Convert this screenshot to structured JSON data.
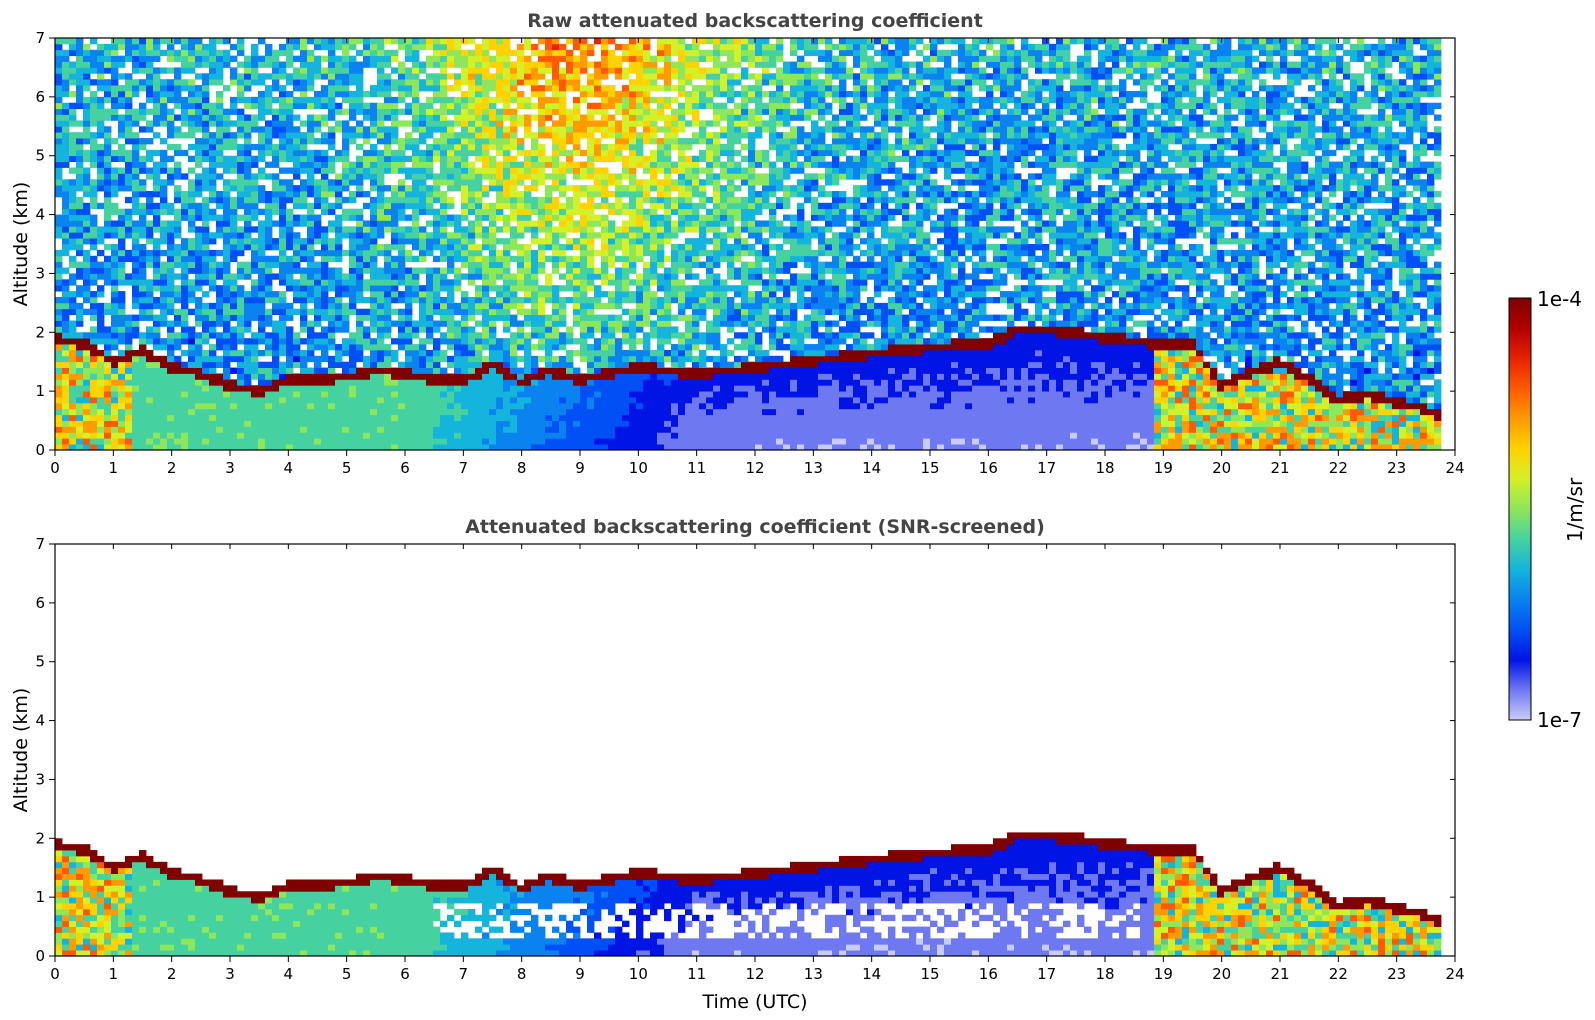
{
  "chart_data": [
    {
      "type": "heatmap",
      "title": "Raw attenuated backscattering coefficient",
      "xlabel": "",
      "ylabel": "Altitude (km)",
      "xlim": [
        0,
        24
      ],
      "ylim": [
        0,
        7
      ],
      "xticks": [
        "0",
        "1",
        "2",
        "3",
        "4",
        "5",
        "6",
        "7",
        "8",
        "9",
        "10",
        "11",
        "12",
        "13",
        "14",
        "15",
        "16",
        "17",
        "18",
        "19",
        "20",
        "21",
        "22",
        "23",
        "24"
      ],
      "yticks": [
        "0",
        "1",
        "2",
        "3",
        "4",
        "5",
        "6",
        "7"
      ],
      "boundary_layer_top_km": {
        "x": [
          0,
          0.5,
          1,
          1.5,
          2,
          2.5,
          3,
          3.5,
          4,
          4.5,
          5,
          5.5,
          6,
          6.5,
          7,
          7.5,
          8,
          8.5,
          9,
          9.5,
          10,
          10.5,
          11,
          11.5,
          12,
          15,
          16,
          16.5,
          17,
          17.5,
          18,
          18.5,
          19,
          19.5,
          20,
          21,
          21.5,
          22,
          22.5,
          23,
          23.5,
          23.7
        ],
        "y": [
          1.9,
          1.8,
          1.5,
          1.7,
          1.4,
          1.3,
          1.1,
          1.0,
          1.2,
          1.2,
          1.25,
          1.35,
          1.3,
          1.2,
          1.2,
          1.45,
          1.15,
          1.35,
          1.2,
          1.3,
          1.4,
          1.35,
          1.3,
          1.35,
          1.4,
          1.75,
          1.8,
          2.05,
          2.05,
          2.0,
          1.9,
          1.85,
          1.8,
          1.8,
          1.1,
          1.5,
          1.2,
          0.85,
          0.95,
          0.8,
          0.7,
          0.6
        ]
      },
      "screened": false
    },
    {
      "type": "heatmap",
      "title": "Attenuated backscattering coefficient (SNR-screened)",
      "xlabel": "Time (UTC)",
      "ylabel": "Altitude (km)",
      "xlim": [
        0,
        24
      ],
      "ylim": [
        0,
        7
      ],
      "xticks": [
        "0",
        "1",
        "2",
        "3",
        "4",
        "5",
        "6",
        "7",
        "8",
        "9",
        "10",
        "11",
        "12",
        "13",
        "14",
        "15",
        "16",
        "17",
        "18",
        "19",
        "20",
        "21",
        "22",
        "23",
        "24"
      ],
      "yticks": [
        "0",
        "1",
        "2",
        "3",
        "4",
        "5",
        "6",
        "7"
      ],
      "screened": true
    }
  ],
  "colorbar": {
    "label": "1/m/sr",
    "max_label": "1e-4",
    "min_label": "1e-7",
    "colors": [
      "#7f0000",
      "#b30000",
      "#e62200",
      "#ff5a00",
      "#ff9a00",
      "#ffd200",
      "#d4f028",
      "#8ee65a",
      "#46d2a0",
      "#14b4dc",
      "#0a82f0",
      "#0050f5",
      "#0014e6",
      "#6e78f0",
      "#c8ccf8"
    ]
  }
}
